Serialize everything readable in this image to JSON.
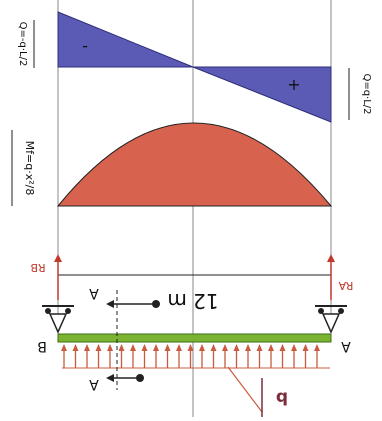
{
  "shear_label_left": "Q=-q·L/2",
  "shear_label_right": "Q=q·L/2",
  "moment_label": "Mf=q·x²/8",
  "shear_minus": "-",
  "shear_plus": "+",
  "reaction_b": "RB",
  "reaction_a": "RA",
  "span_label": "12 m",
  "support_b": "B",
  "support_a": "A",
  "section_a_top": "A",
  "section_a_bottom": "A",
  "load_label": "q",
  "colors": {
    "shear_fill": "#5b5bb5",
    "moment_fill": "#d7634f",
    "beam": "#7ab32f",
    "load_arrow": "#c85b3f",
    "reaction": "#c0392b",
    "guide": "#777777",
    "load_label": "#7b2d3a"
  }
}
